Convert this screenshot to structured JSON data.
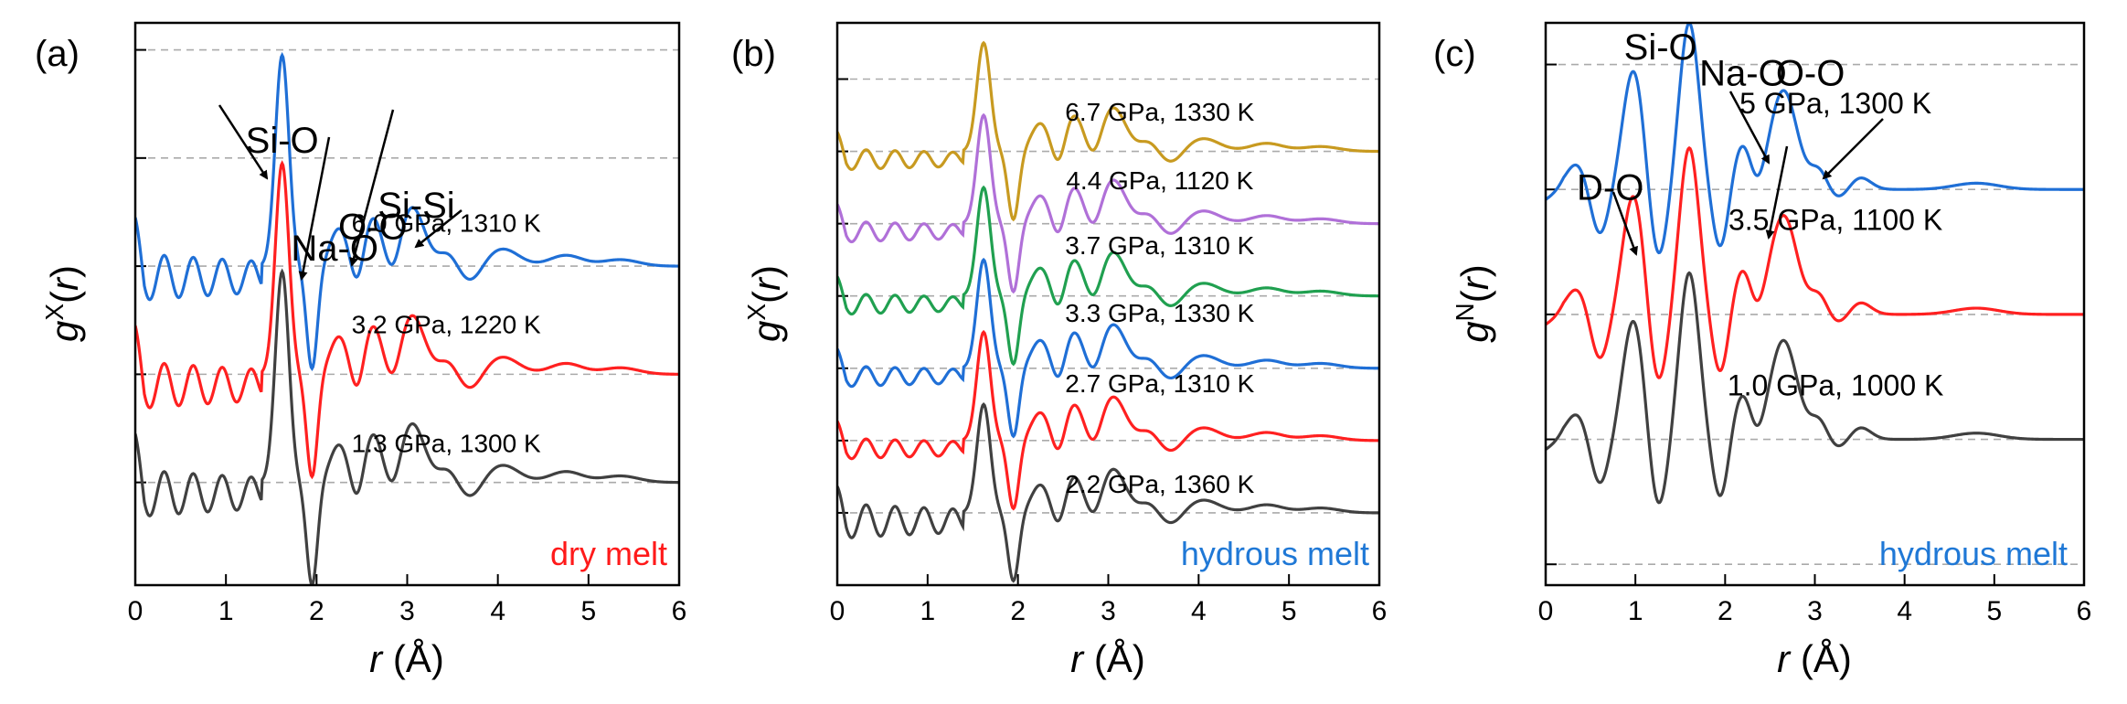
{
  "chart_data": [
    {
      "type": "line",
      "panel": "(a)",
      "xlabel_var": "r",
      "xlabel_unit": " (Å)",
      "ylabel_main": "g",
      "ylabel_sup": "X",
      "ylabel_arg_open": "(",
      "ylabel_arg": "r",
      "ylabel_arg_close": ")",
      "xlim": [
        0,
        6
      ],
      "xticks": [
        0,
        1,
        2,
        3,
        4,
        5,
        6
      ],
      "ylim": [
        0,
        5.2
      ],
      "grid_y": [
        0.95,
        1.95,
        2.95,
        3.95,
        4.95
      ],
      "tag": "dry melt",
      "tag_color": "#ff1a1a",
      "annotations": [
        {
          "text": "Si-O",
          "x": 1.62,
          "y": 4.0
        },
        {
          "text": "Na-O",
          "x": 2.2,
          "y": 3.0
        },
        {
          "text": "O-O",
          "x": 2.62,
          "y": 3.2
        },
        {
          "text": "Si-Si",
          "x": 3.1,
          "y": 3.4
        }
      ],
      "series": [
        {
          "name": "1.3 GPa, 1300 K",
          "color": "#404040",
          "baseline": 0.95,
          "offset": 0.0,
          "minr": 0.0,
          "label_x": 3.43,
          "label_y": 1.23
        },
        {
          "name": "3.2 GPa, 1220 K",
          "color": "#ff2020",
          "baseline": 1.95,
          "offset": 1.0,
          "minr": 0.0,
          "label_x": 3.43,
          "label_y": 2.33
        },
        {
          "name": "6.0 GPa, 1310 K",
          "color": "#1f6fd6",
          "baseline": 2.95,
          "offset": 2.0,
          "minr": 0.0,
          "label_x": 3.43,
          "label_y": 3.27
        }
      ]
    },
    {
      "type": "line",
      "panel": "(b)",
      "xlabel_var": "r",
      "xlabel_unit": " (Å)",
      "ylabel_main": "g",
      "ylabel_sup": "X",
      "ylabel_arg_open": "(",
      "ylabel_arg": "r",
      "ylabel_arg_close": ")",
      "xlim": [
        0,
        6
      ],
      "xticks": [
        0,
        1,
        2,
        3,
        4,
        5,
        6
      ],
      "ylim": [
        0,
        7.0
      ],
      "grid_y": [
        0.9,
        1.8,
        2.7,
        3.6,
        4.5,
        5.4,
        6.3
      ],
      "tag": "hydrous melt",
      "tag_color": "#1f78d6",
      "annotations": [],
      "series": [
        {
          "name": "2.2 GPa, 1360 K",
          "color": "#404040",
          "baseline": 0.9,
          "offset": 0.0,
          "minr": 0.0,
          "label_x": 3.57,
          "label_y": 1.15
        },
        {
          "name": "2.7 GPa, 1310 K",
          "color": "#ff2020",
          "baseline": 1.8,
          "offset": 0.9,
          "minr": 0.0,
          "label_x": 3.57,
          "label_y": 2.4
        },
        {
          "name": "3.3 GPa, 1330 K",
          "color": "#1f6fd6",
          "baseline": 2.7,
          "offset": 1.8,
          "minr": 0.0,
          "label_x": 3.57,
          "label_y": 3.28
        },
        {
          "name": "3.7 GPa, 1310 K",
          "color": "#20a050",
          "baseline": 3.6,
          "offset": 2.7,
          "minr": 0.0,
          "label_x": 3.57,
          "label_y": 4.12
        },
        {
          "name": "4.4 GPa, 1120 K",
          "color": "#b070d8",
          "baseline": 4.5,
          "offset": 3.6,
          "minr": 0.0,
          "label_x": 3.57,
          "label_y": 4.93
        },
        {
          "name": "6.7 GPa, 1330 K",
          "color": "#c89a20",
          "baseline": 5.4,
          "offset": 4.5,
          "minr": 0.0,
          "label_x": 3.57,
          "label_y": 5.78
        }
      ]
    },
    {
      "type": "line",
      "panel": "(c)",
      "xlabel_var": "r",
      "xlabel_unit": " (Å)",
      "ylabel_main": "g",
      "ylabel_sup": "N",
      "ylabel_arg_open": "(",
      "ylabel_arg": "r",
      "ylabel_arg_close": ")",
      "xlim": [
        0,
        6
      ],
      "xticks": [
        0,
        1,
        2,
        3,
        4,
        5,
        6
      ],
      "ylim": [
        0,
        5.4
      ],
      "grid_y": [
        0.2,
        1.4,
        2.6,
        3.8,
        5.0
      ],
      "tag": "hydrous melt",
      "tag_color": "#1f78d6",
      "annotations": [
        {
          "text": "D-O",
          "x": 0.72,
          "y": 3.7
        },
        {
          "text": "Si-O",
          "x": 1.28,
          "y": 5.05
        },
        {
          "text": "Na-O",
          "x": 2.2,
          "y": 4.8
        },
        {
          "text": "O-O",
          "x": 2.95,
          "y": 4.8
        }
      ],
      "series": [
        {
          "name": "1.0 GPa, 1000 K",
          "color": "#404040",
          "baseline": 1.4,
          "offset": 0.0,
          "minr": 0.0,
          "label_x": 3.23,
          "label_y": 1.82
        },
        {
          "name": "3.5 GPa, 1100 K",
          "color": "#ff2020",
          "baseline": 2.6,
          "offset": 1.2,
          "minr": 0.0,
          "label_x": 3.23,
          "label_y": 3.41
        },
        {
          "name": "5 GPa, 1300 K",
          "color": "#1f6fd6",
          "baseline": 3.8,
          "offset": 2.4,
          "minr": 0.0,
          "label_x": 3.23,
          "label_y": 4.53
        }
      ]
    }
  ]
}
